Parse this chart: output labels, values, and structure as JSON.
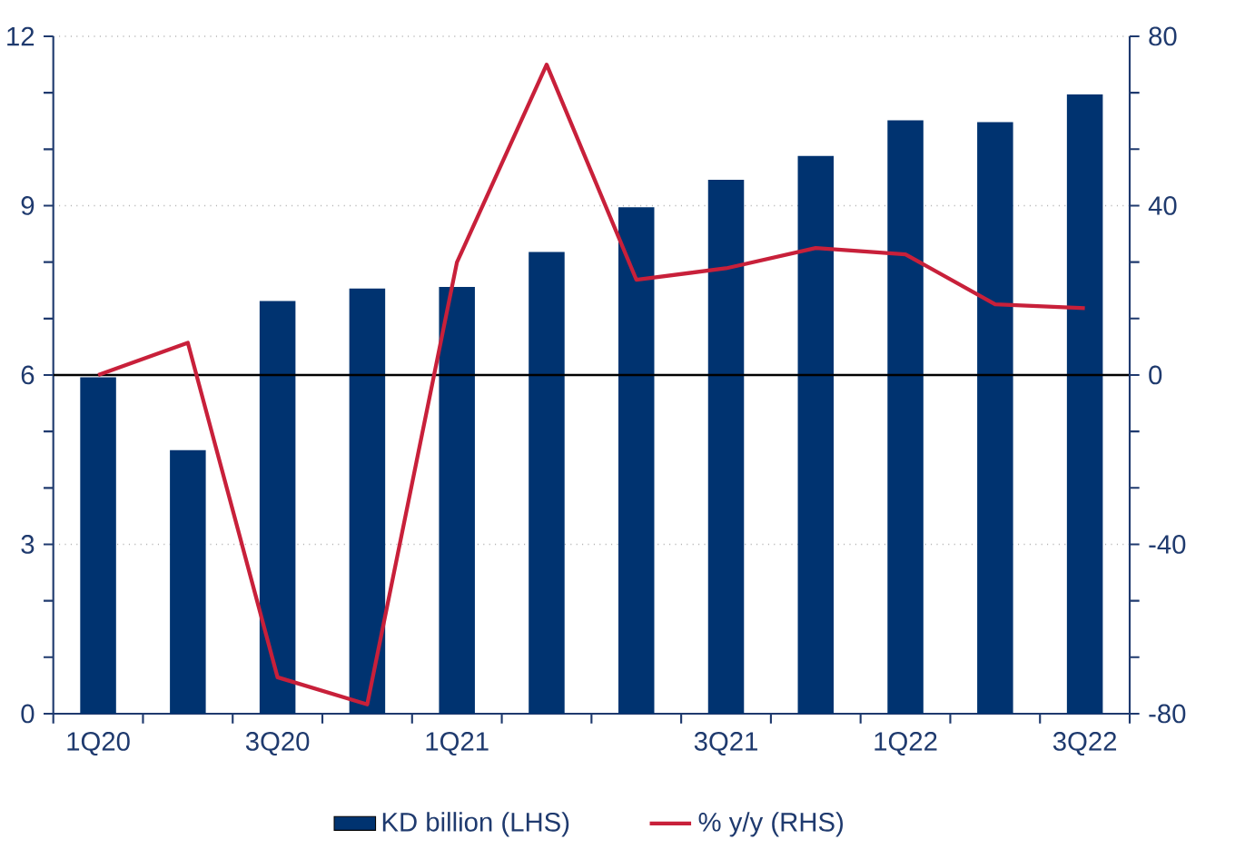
{
  "chart_data": {
    "type": "bar",
    "categories": [
      "1Q20",
      null,
      "3Q20",
      null,
      "1Q21",
      null,
      null,
      "3Q21",
      null,
      "1Q22",
      null,
      "3Q22"
    ],
    "series": [
      {
        "name": "KD billion (LHS)",
        "color": "#003370",
        "values": [
          5.96,
          4.67,
          7.31,
          7.53,
          7.56,
          8.18,
          8.97,
          9.46,
          9.88,
          10.51,
          10.48,
          10.97
        ]
      },
      {
        "name": "% y/y (RHS)",
        "type": "line",
        "axis": "y2",
        "color": "#c8203a",
        "values": [
          0,
          7.6,
          -71.4,
          -77.8,
          26.6,
          73.3,
          22.5,
          25.2,
          30,
          28.5,
          16.7,
          15.8
        ]
      }
    ],
    "ylim": [
      0,
      12
    ],
    "yticks": [
      0,
      3,
      6,
      9,
      12
    ],
    "y2lim": [
      -80,
      80
    ],
    "y2ticks": [
      -80,
      -40,
      0,
      40,
      80
    ],
    "grid": "y",
    "legend": "bottom",
    "ref_lines": [
      {
        "axis": "y",
        "value": 6,
        "color": "#000000"
      }
    ]
  }
}
